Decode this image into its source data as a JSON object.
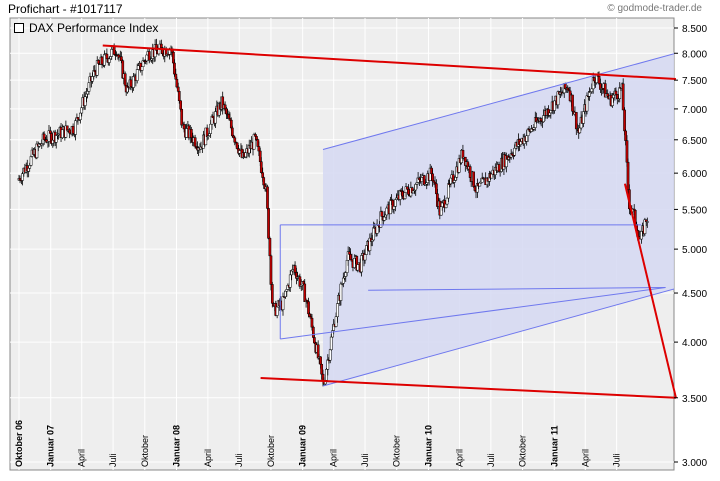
{
  "header": {
    "title": "Profichart - #1017117",
    "source": "© godmode-trader.de"
  },
  "chart_data": {
    "type": "candlestick",
    "title": "",
    "legend": [
      "DAX Performance Index"
    ],
    "y_scale": "log",
    "ylim": [
      3000,
      8700
    ],
    "y_ticks": [
      3000,
      3500,
      4000,
      4500,
      5000,
      5500,
      6000,
      6500,
      7000,
      7500,
      8000,
      8500
    ],
    "y_tick_labels": [
      "3.000",
      "3.500",
      "4.000",
      "4.500",
      "5.000",
      "5.500",
      "6.000",
      "6.500",
      "7.000",
      "7.500",
      "8.000",
      "8.500"
    ],
    "x_range": [
      "2006-10-01",
      "2011-09-30"
    ],
    "x_ticks": [
      {
        "date": "2006-10-01",
        "label": "Oktober 06",
        "bold": true
      },
      {
        "date": "2007-01-01",
        "label": "Januar 07",
        "bold": true
      },
      {
        "date": "2007-04-01",
        "label": "April",
        "bold": false
      },
      {
        "date": "2007-07-01",
        "label": "Juli",
        "bold": false
      },
      {
        "date": "2007-10-01",
        "label": "Oktober",
        "bold": false
      },
      {
        "date": "2008-01-01",
        "label": "Januar 08",
        "bold": true
      },
      {
        "date": "2008-04-01",
        "label": "April",
        "bold": false
      },
      {
        "date": "2008-07-01",
        "label": "Juli",
        "bold": false
      },
      {
        "date": "2008-10-01",
        "label": "Oktober",
        "bold": false
      },
      {
        "date": "2009-01-01",
        "label": "Januar 09",
        "bold": true
      },
      {
        "date": "2009-04-01",
        "label": "April",
        "bold": false
      },
      {
        "date": "2009-07-01",
        "label": "Juli",
        "bold": false
      },
      {
        "date": "2009-10-01",
        "label": "Oktober",
        "bold": false
      },
      {
        "date": "2010-01-01",
        "label": "Januar 10",
        "bold": true
      },
      {
        "date": "2010-04-01",
        "label": "April",
        "bold": false
      },
      {
        "date": "2010-07-01",
        "label": "Juli",
        "bold": false
      },
      {
        "date": "2010-10-01",
        "label": "Oktober",
        "bold": false
      },
      {
        "date": "2011-01-01",
        "label": "Januar 11",
        "bold": true
      },
      {
        "date": "2011-04-01",
        "label": "April",
        "bold": false
      },
      {
        "date": "2011-07-01",
        "label": "Juli",
        "bold": false
      }
    ],
    "price_path": [
      {
        "date": "2006-10-01",
        "value": 5900
      },
      {
        "date": "2006-12-15",
        "value": 6500
      },
      {
        "date": "2007-03-15",
        "value": 6700
      },
      {
        "date": "2007-05-15",
        "value": 7700
      },
      {
        "date": "2007-07-15",
        "value": 8100
      },
      {
        "date": "2007-08-15",
        "value": 7300
      },
      {
        "date": "2007-10-15",
        "value": 8000
      },
      {
        "date": "2007-12-20",
        "value": 8100
      },
      {
        "date": "2008-01-22",
        "value": 6700
      },
      {
        "date": "2008-03-15",
        "value": 6400
      },
      {
        "date": "2008-05-15",
        "value": 7100
      },
      {
        "date": "2008-07-15",
        "value": 6200
      },
      {
        "date": "2008-08-20",
        "value": 6500
      },
      {
        "date": "2008-09-20",
        "value": 5800
      },
      {
        "date": "2008-10-10",
        "value": 4300
      },
      {
        "date": "2008-11-10",
        "value": 4400
      },
      {
        "date": "2008-12-10",
        "value": 4800
      },
      {
        "date": "2009-01-10",
        "value": 4500
      },
      {
        "date": "2009-03-06",
        "value": 3600
      },
      {
        "date": "2009-05-15",
        "value": 4900
      },
      {
        "date": "2009-06-20",
        "value": 4800
      },
      {
        "date": "2009-08-20",
        "value": 5400
      },
      {
        "date": "2009-10-20",
        "value": 5700
      },
      {
        "date": "2010-01-15",
        "value": 6000
      },
      {
        "date": "2010-02-08",
        "value": 5450
      },
      {
        "date": "2010-04-15",
        "value": 6300
      },
      {
        "date": "2010-05-25",
        "value": 5750
      },
      {
        "date": "2010-08-15",
        "value": 6200
      },
      {
        "date": "2010-10-20",
        "value": 6600
      },
      {
        "date": "2010-12-20",
        "value": 7000
      },
      {
        "date": "2011-02-15",
        "value": 7400
      },
      {
        "date": "2011-03-16",
        "value": 6600
      },
      {
        "date": "2011-05-02",
        "value": 7600
      },
      {
        "date": "2011-06-15",
        "value": 7150
      },
      {
        "date": "2011-07-20",
        "value": 7350
      },
      {
        "date": "2011-08-09",
        "value": 5600
      },
      {
        "date": "2011-08-25",
        "value": 5400
      },
      {
        "date": "2011-09-12",
        "value": 5100
      },
      {
        "date": "2011-09-30",
        "value": 5400
      }
    ],
    "annotations": {
      "red_lines": [
        {
          "from": {
            "date": "2007-06-01",
            "value": 8150
          },
          "to": {
            "date": "2011-12-20",
            "value": 7520
          }
        },
        {
          "from": {
            "date": "2008-09-01",
            "value": 3670
          },
          "to": {
            "date": "2011-12-20",
            "value": 3500
          }
        },
        {
          "from": {
            "date": "2011-07-25",
            "value": 5850
          },
          "to": {
            "date": "2011-12-20",
            "value": 3500
          }
        }
      ],
      "blue_channel": {
        "upper": {
          "from": {
            "date": "2009-03-01",
            "value": 6350
          },
          "to": {
            "date": "2011-12-20",
            "value": 8000
          }
        },
        "lower": {
          "from": {
            "date": "2009-03-01",
            "value": 3600
          },
          "to": {
            "date": "2011-12-20",
            "value": 4550
          }
        }
      },
      "blue_lines": [
        {
          "from": {
            "date": "2008-10-28",
            "value": 5300
          },
          "to": {
            "date": "2011-09-10",
            "value": 5300
          }
        },
        {
          "from": {
            "date": "2008-10-28",
            "value": 4030
          },
          "to": {
            "date": "2011-11-20",
            "value": 4560
          }
        },
        {
          "from": {
            "date": "2009-07-10",
            "value": 4530
          },
          "to": {
            "date": "2011-11-20",
            "value": 4560
          }
        },
        {
          "from": {
            "date": "2008-10-28",
            "value": 5300
          },
          "to": {
            "date": "2008-10-28",
            "value": 4030
          }
        }
      ]
    },
    "grid": true,
    "legend_position": "top-left"
  },
  "colors": {
    "plot_bg": "#eeeeee",
    "grid": "#ffffff",
    "candle_up": "#ffffff",
    "candle_down": "#c00000",
    "trend_red": "#dd0000",
    "channel_blue": "#6f78ee",
    "channel_fill": "#d5d8f2"
  }
}
